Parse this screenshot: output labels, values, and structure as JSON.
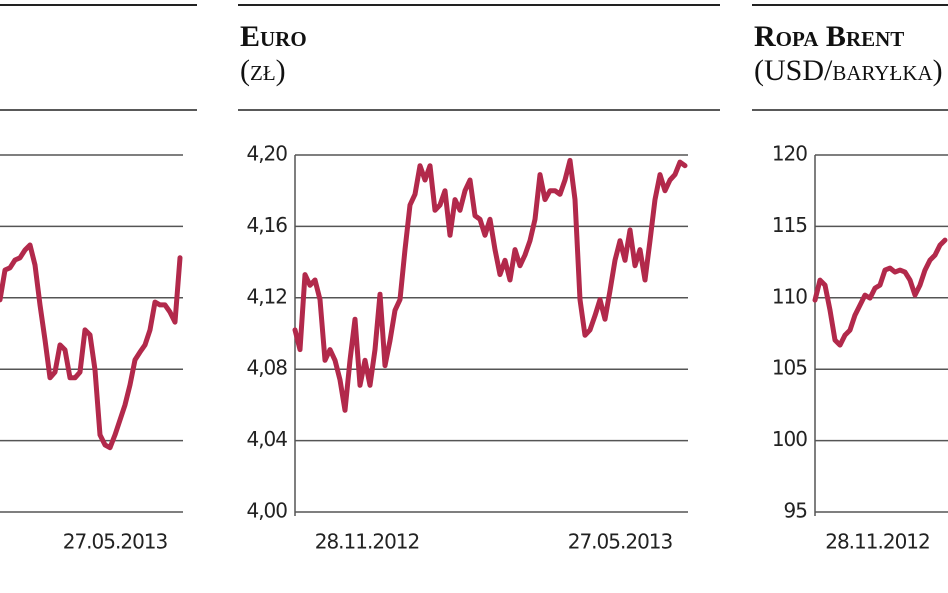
{
  "chart_data": [
    {
      "type": "line",
      "color": "#b2294b",
      "ylim": [
        0,
        5
      ],
      "yticks": [
        0,
        1,
        2,
        3,
        4,
        5
      ],
      "ytick_labels": false,
      "xlim": [
        0,
        78.6
      ],
      "xticks": [
        {
          "value": 65,
          "label": "27.05.2013"
        }
      ],
      "x": [
        42,
        43,
        44,
        45,
        46,
        47,
        48,
        49,
        50,
        51,
        52,
        53,
        54,
        55,
        56,
        57,
        58,
        59,
        60,
        61,
        62,
        63,
        64,
        65,
        66,
        67,
        68,
        69,
        70,
        71,
        72,
        73,
        74,
        75,
        76,
        77,
        78
      ],
      "values": [
        2.97,
        3.39,
        3.42,
        3.53,
        3.56,
        3.67,
        3.74,
        3.46,
        2.9,
        2.41,
        1.88,
        1.96,
        2.34,
        2.27,
        1.88,
        1.88,
        1.96,
        2.55,
        2.48,
        1.99,
        1.08,
        0.94,
        0.9,
        1.08,
        1.29,
        1.5,
        1.78,
        2.13,
        2.24,
        2.34,
        2.55,
        2.94,
        2.9,
        2.9,
        2.8,
        2.66,
        3.56
      ]
    },
    {
      "type": "line",
      "title": "Euro",
      "subtitle": "(zł)",
      "color": "#b2294b",
      "ylim": [
        4.0,
        4.2
      ],
      "xlim": [
        0,
        78.6
      ],
      "yticks": [
        {
          "value": 4.0,
          "label": "4,00"
        },
        {
          "value": 4.04,
          "label": "4,04"
        },
        {
          "value": 4.08,
          "label": "4,08"
        },
        {
          "value": 4.12,
          "label": "4,12"
        },
        {
          "value": 4.16,
          "label": "4,16"
        },
        {
          "value": 4.2,
          "label": "4,20"
        }
      ],
      "xticks": [
        {
          "value": 14.4,
          "label": "28.11.2012"
        },
        {
          "value": 65,
          "label": "27.05.2013"
        }
      ],
      "values": [
        4.102,
        4.091,
        4.133,
        4.127,
        4.13,
        4.119,
        4.085,
        4.091,
        4.085,
        4.074,
        4.057,
        4.085,
        4.108,
        4.071,
        4.085,
        4.071,
        4.091,
        4.122,
        4.082,
        4.096,
        4.113,
        4.119,
        4.147,
        4.172,
        4.178,
        4.194,
        4.186,
        4.194,
        4.169,
        4.172,
        4.18,
        4.155,
        4.175,
        4.169,
        4.18,
        4.186,
        4.166,
        4.164,
        4.155,
        4.164,
        4.147,
        4.133,
        4.141,
        4.13,
        4.147,
        4.138,
        4.144,
        4.152,
        4.164,
        4.189,
        4.175,
        4.18,
        4.18,
        4.178,
        4.186,
        4.197,
        4.175,
        4.119,
        4.099,
        4.102,
        4.11,
        4.119,
        4.108,
        4.124,
        4.141,
        4.152,
        4.141,
        4.158,
        4.138,
        4.147,
        4.13,
        4.152,
        4.175,
        4.189,
        4.18,
        4.186,
        4.189,
        4.196,
        4.194
      ]
    },
    {
      "type": "line",
      "title": "Ropa Brent",
      "subtitle": "(USD/baryłka)",
      "color": "#b2294b",
      "ylim": [
        95,
        120
      ],
      "xlim": [
        0,
        78.6
      ],
      "yticks": [
        95,
        100,
        105,
        110,
        115,
        120
      ],
      "xticks": [
        {
          "value": 12.5,
          "label": "28.11.2012"
        }
      ],
      "values": [
        109.84,
        111.24,
        110.89,
        109.14,
        107.04,
        106.69,
        107.39,
        107.74,
        108.79,
        109.49,
        110.19,
        109.98,
        110.68,
        110.89,
        111.94,
        112.08,
        111.8,
        111.94,
        111.8,
        111.24,
        110.19,
        110.89,
        111.94,
        112.64,
        112.99,
        113.69,
        114.04
      ]
    }
  ]
}
